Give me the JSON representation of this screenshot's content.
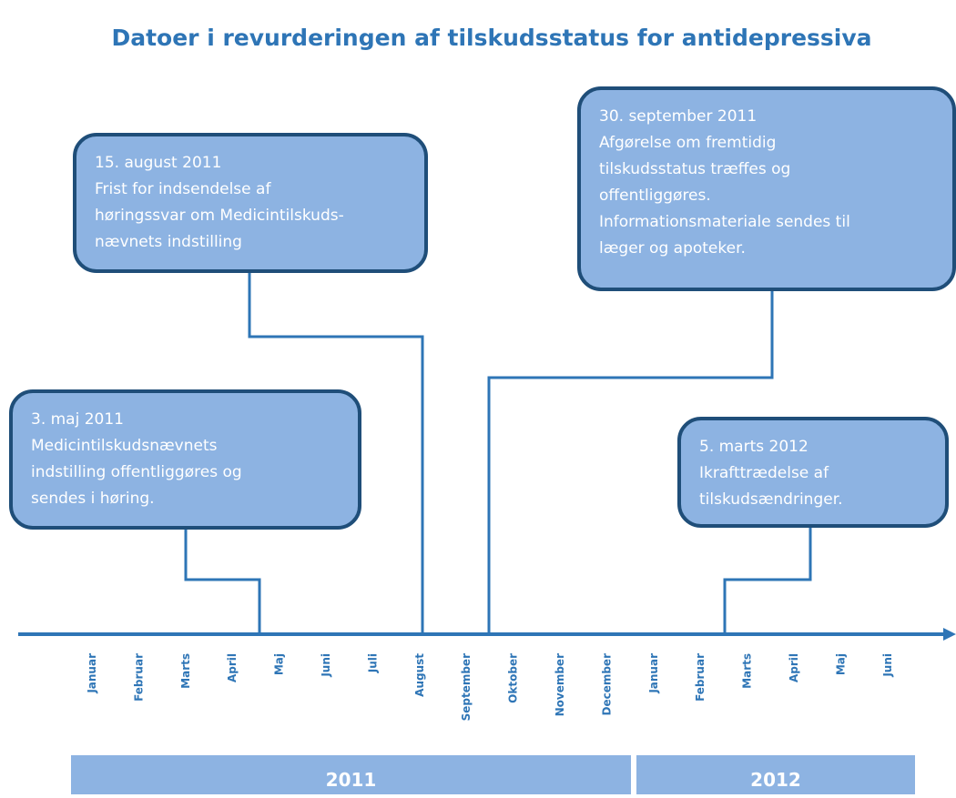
{
  "title": "Datoer i revurderingen af tilskudsstatus for antidepressiva",
  "events": [
    {
      "lines": [
        "3. maj 2011",
        "Medicintilskudsnævnets",
        "indstilling offentliggøres og",
        "sendes i høring."
      ]
    },
    {
      "lines": [
        "15. august 2011",
        "Frist for indsendelse af",
        "høringssvar om Medicintilskuds-",
        "nævnets indstilling"
      ]
    },
    {
      "lines": [
        "30. september 2011",
        "Afgørelse om fremtidig",
        "tilskudsstatus træffes og",
        "offentliggøres.",
        "Informationsmateriale sendes til",
        "læger og apoteker."
      ]
    },
    {
      "lines": [
        "5. marts 2012",
        "Ikrafttrædelse af",
        "tilskudsændringer."
      ]
    }
  ],
  "months": [
    "Januar",
    "Februar",
    "Marts",
    "April",
    "Maj",
    "Juni",
    "Juli",
    "August",
    "September",
    "Oktober",
    "November",
    "December",
    "Januar",
    "Februar",
    "Marts",
    "April",
    "Maj",
    "Juni"
  ],
  "years": [
    "2011",
    "2012"
  ]
}
